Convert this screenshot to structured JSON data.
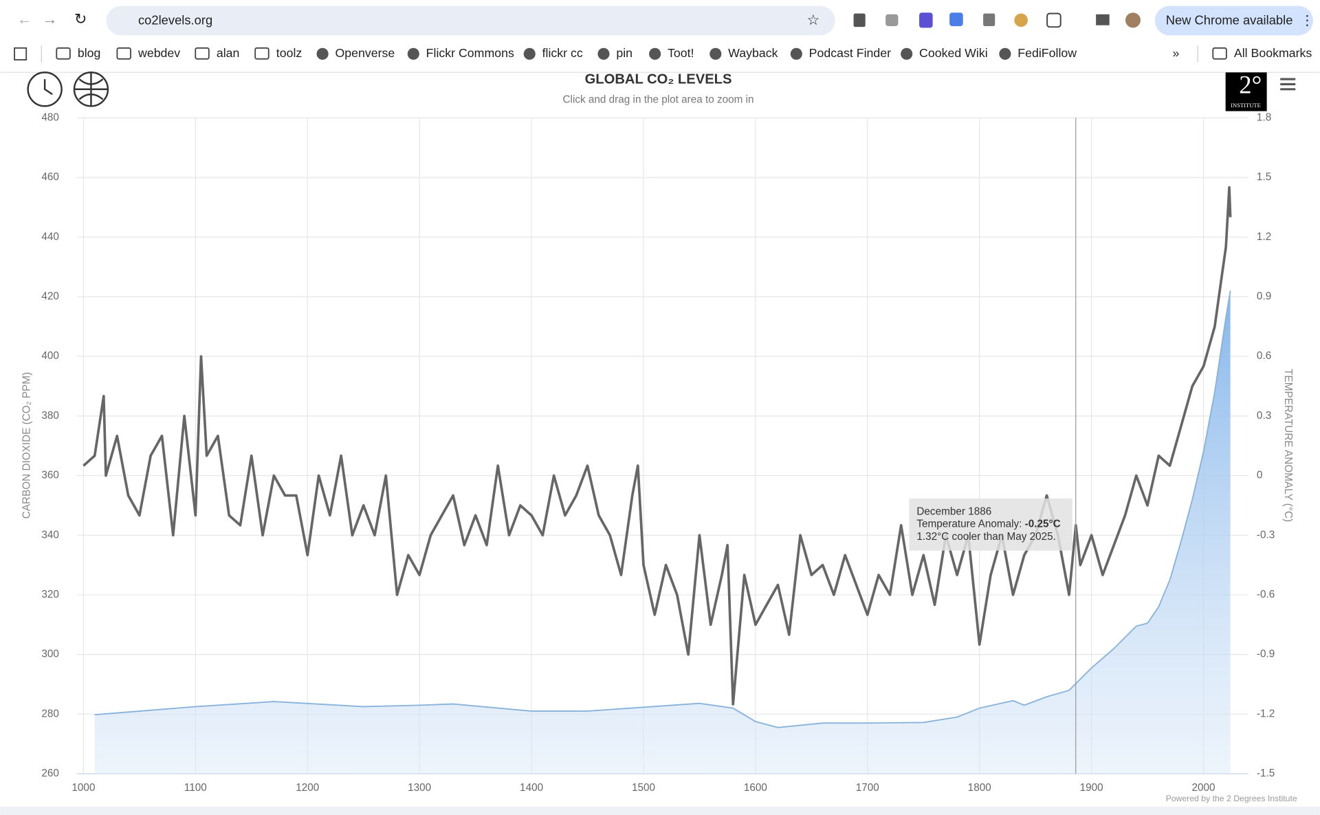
{
  "browser": {
    "url": "co2levels.org",
    "update_button": "New Chrome available",
    "bookmarks": [
      "blog",
      "webdev",
      "alan",
      "toolz",
      "Openverse",
      "Flickr Commons",
      "flickr cc",
      "pin",
      "Toot!",
      "Wayback",
      "Podcast Finder",
      "Cooked Wiki",
      "FediFollow"
    ],
    "all_bookmarks": "All Bookmarks"
  },
  "logo": {
    "text": "2°",
    "subtext": "INSTITUTE"
  },
  "tooltip": {
    "date": "December 1886",
    "label": "Temperature Anomaly: ",
    "value": "-0.25°C",
    "comparison": "1.32°C cooler than May 2025."
  },
  "credit": "Powered by the 2 Degrees Institute",
  "chart_data": {
    "type": "line",
    "title": "GLOBAL CO₂ LEVELS",
    "subtitle": "Click and drag in the plot area to zoom in",
    "y_label": "CARBON DIOXIDE (CO₂ PPM)",
    "y2_label": "TEMPERATURE ANOMALY (°C)",
    "xlim": [
      1000,
      2040
    ],
    "xticks": [
      1000,
      1100,
      1200,
      1300,
      1400,
      1500,
      1600,
      1700,
      1800,
      1900,
      2000
    ],
    "ylim": [
      260,
      480
    ],
    "yticks": [
      260,
      280,
      300,
      320,
      340,
      360,
      380,
      400,
      420,
      440,
      460,
      480
    ],
    "y2lim": [
      -1.5,
      1.8
    ],
    "y2ticks": [
      -1.5,
      -1.2,
      -0.9,
      -0.6,
      -0.3,
      0,
      0.3,
      0.6,
      0.9,
      1.2,
      1.5,
      1.8
    ],
    "grid": true,
    "series": [
      {
        "name": "CO₂",
        "color": "#86b2dc",
        "axis": "y",
        "fill": true,
        "x": [
          1010,
          1100,
          1170,
          1250,
          1300,
          1330,
          1400,
          1450,
          1500,
          1550,
          1580,
          1600,
          1620,
          1660,
          1700,
          1750,
          1780,
          1800,
          1830,
          1840,
          1860,
          1880,
          1900,
          1920,
          1940,
          1950,
          1960,
          1970,
          1980,
          1990,
          2000,
          2010,
          2020,
          2024
        ],
        "values": [
          279.8,
          282.5,
          284.2,
          282.5,
          283,
          283.4,
          281,
          281,
          282.3,
          283.6,
          282,
          277.5,
          275.5,
          277,
          277,
          277.2,
          279,
          282,
          284.5,
          283,
          285.8,
          288,
          295.5,
          302,
          309.5,
          310.5,
          316,
          325,
          338,
          352,
          368,
          388,
          413,
          422
        ]
      },
      {
        "name": "Temperature Anomaly",
        "color": "#666666",
        "axis": "y2",
        "x": [
          1000,
          1010,
          1018,
          1020,
          1030,
          1040,
          1050,
          1060,
          1070,
          1080,
          1090,
          1100,
          1105,
          1110,
          1120,
          1130,
          1140,
          1150,
          1160,
          1170,
          1180,
          1190,
          1200,
          1210,
          1220,
          1230,
          1240,
          1250,
          1260,
          1270,
          1280,
          1290,
          1300,
          1310,
          1320,
          1330,
          1340,
          1350,
          1360,
          1370,
          1380,
          1390,
          1400,
          1410,
          1420,
          1430,
          1440,
          1450,
          1460,
          1470,
          1480,
          1490,
          1495,
          1500,
          1510,
          1520,
          1530,
          1540,
          1550,
          1560,
          1570,
          1575,
          1580,
          1590,
          1600,
          1610,
          1620,
          1630,
          1640,
          1650,
          1660,
          1670,
          1680,
          1690,
          1700,
          1710,
          1720,
          1730,
          1740,
          1750,
          1760,
          1770,
          1780,
          1790,
          1800,
          1810,
          1820,
          1830,
          1840,
          1850,
          1860,
          1870,
          1880,
          1886,
          1890,
          1900,
          1910,
          1920,
          1930,
          1940,
          1950,
          1960,
          1970,
          1980,
          1990,
          2000,
          2010,
          2015,
          2020,
          2023,
          2024
        ],
        "values": [
          0.05,
          0.1,
          0.4,
          0.0,
          0.2,
          -0.1,
          -0.2,
          0.1,
          0.2,
          -0.3,
          0.3,
          -0.2,
          0.6,
          0.1,
          0.2,
          -0.2,
          -0.25,
          0.1,
          -0.3,
          0.0,
          -0.1,
          -0.1,
          -0.4,
          0.0,
          -0.2,
          0.1,
          -0.3,
          -0.15,
          -0.3,
          0.0,
          -0.6,
          -0.4,
          -0.5,
          -0.3,
          -0.2,
          -0.1,
          -0.35,
          -0.2,
          -0.35,
          0.05,
          -0.3,
          -0.15,
          -0.2,
          -0.3,
          0.0,
          -0.2,
          -0.1,
          0.05,
          -0.2,
          -0.3,
          -0.5,
          -0.1,
          0.05,
          -0.45,
          -0.7,
          -0.45,
          -0.6,
          -0.9,
          -0.3,
          -0.75,
          -0.5,
          -0.35,
          -1.15,
          -0.5,
          -0.75,
          -0.65,
          -0.55,
          -0.8,
          -0.3,
          -0.5,
          -0.45,
          -0.6,
          -0.4,
          -0.55,
          -0.7,
          -0.5,
          -0.6,
          -0.25,
          -0.6,
          -0.4,
          -0.65,
          -0.3,
          -0.5,
          -0.3,
          -0.85,
          -0.5,
          -0.3,
          -0.6,
          -0.4,
          -0.3,
          -0.1,
          -0.3,
          -0.6,
          -0.25,
          -0.45,
          -0.3,
          -0.5,
          -0.35,
          -0.2,
          0.0,
          -0.15,
          0.1,
          0.05,
          0.25,
          0.45,
          0.55,
          0.75,
          0.95,
          1.15,
          1.45,
          1.3
        ]
      }
    ]
  }
}
